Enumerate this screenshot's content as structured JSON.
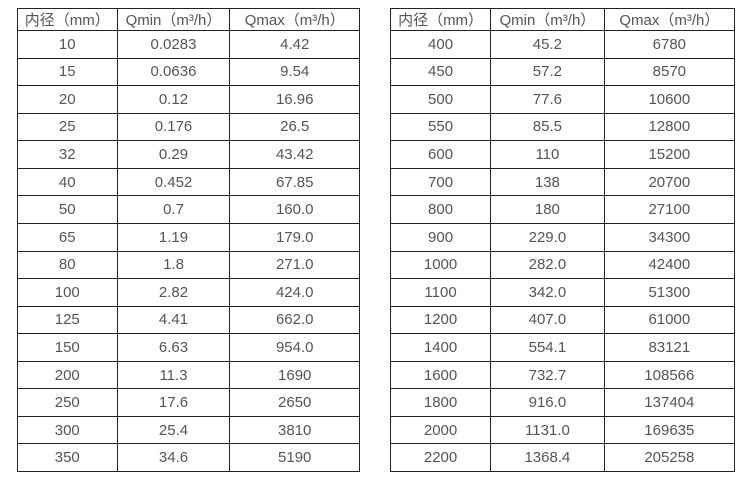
{
  "page": {
    "background_color": "#ffffff",
    "border_color": "#222222",
    "text_color": "#555555"
  },
  "tables": [
    {
      "name": "flow-spec-table-small-diameters",
      "headers": [
        "内径（mm）",
        "Qmin（m³/h）",
        "Qmax（m³/h）"
      ],
      "rows": [
        [
          "10",
          "0.0283",
          "4.42"
        ],
        [
          "15",
          "0.0636",
          "9.54"
        ],
        [
          "20",
          "0.12",
          "16.96"
        ],
        [
          "25",
          "0.176",
          "26.5"
        ],
        [
          "32",
          "0.29",
          "43.42"
        ],
        [
          "40",
          "0.452",
          "67.85"
        ],
        [
          "50",
          "0.7",
          "160.0"
        ],
        [
          "65",
          "1.19",
          "179.0"
        ],
        [
          "80",
          "1.8",
          "271.0"
        ],
        [
          "100",
          "2.82",
          "424.0"
        ],
        [
          "125",
          "4.41",
          "662.0"
        ],
        [
          "150",
          "6.63",
          "954.0"
        ],
        [
          "200",
          "11.3",
          "1690"
        ],
        [
          "250",
          "17.6",
          "2650"
        ],
        [
          "300",
          "25.4",
          "3810"
        ],
        [
          "350",
          "34.6",
          "5190"
        ]
      ]
    },
    {
      "name": "flow-spec-table-large-diameters",
      "headers": [
        "内径（mm）",
        "Qmin（m³/h）",
        "Qmax（m³/h）"
      ],
      "rows": [
        [
          "400",
          "45.2",
          "6780"
        ],
        [
          "450",
          "57.2",
          "8570"
        ],
        [
          "500",
          "77.6",
          "10600"
        ],
        [
          "550",
          "85.5",
          "12800"
        ],
        [
          "600",
          "110",
          "15200"
        ],
        [
          "700",
          "138",
          "20700"
        ],
        [
          "800",
          "180",
          "27100"
        ],
        [
          "900",
          "229.0",
          "34300"
        ],
        [
          "1000",
          "282.0",
          "42400"
        ],
        [
          "1100",
          "342.0",
          "51300"
        ],
        [
          "1200",
          "407.0",
          "61000"
        ],
        [
          "1400",
          "554.1",
          "83121"
        ],
        [
          "1600",
          "732.7",
          "108566"
        ],
        [
          "1800",
          "916.0",
          "137404"
        ],
        [
          "2000",
          "1131.0",
          "169635"
        ],
        [
          "2200",
          "1368.4",
          "205258"
        ]
      ]
    }
  ]
}
